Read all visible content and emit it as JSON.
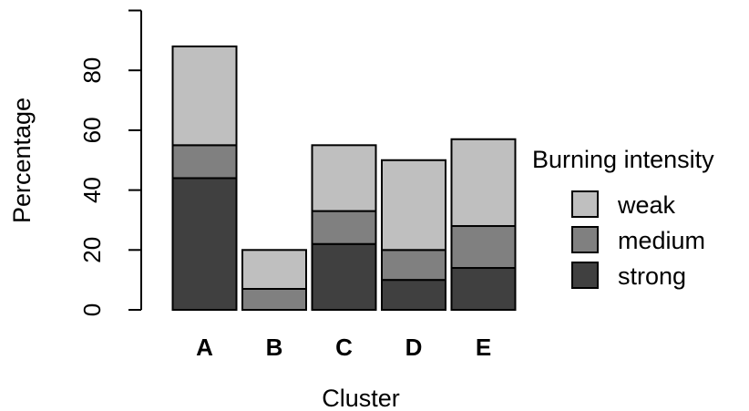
{
  "chart_data": {
    "type": "bar",
    "stacked": true,
    "categories": [
      "A",
      "B",
      "C",
      "D",
      "E"
    ],
    "series": [
      {
        "name": "strong",
        "values": [
          44,
          0,
          22,
          10,
          14
        ],
        "color": "#404040"
      },
      {
        "name": "medium",
        "values": [
          11,
          7,
          11,
          10,
          14
        ],
        "color": "#808080"
      },
      {
        "name": "weak",
        "values": [
          33,
          13,
          22,
          30,
          29
        ],
        "color": "#bfbfbf"
      }
    ],
    "title": "",
    "xlabel": "Cluster",
    "ylabel": "Percentage",
    "ylim": [
      0,
      100
    ],
    "yticks": [
      0,
      20,
      40,
      60,
      80
    ],
    "grid": false,
    "legend": {
      "title": "Burning intensity",
      "placement": "right",
      "order": [
        "weak",
        "medium",
        "strong"
      ]
    }
  }
}
